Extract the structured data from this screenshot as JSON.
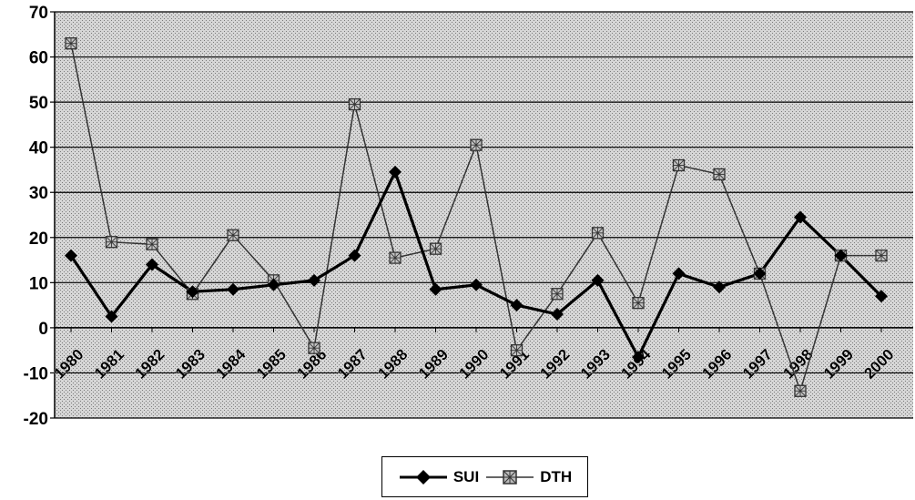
{
  "colors": {
    "SUI": "#000000",
    "DTH": "#333333",
    "plot_bg": "#cfcfcf",
    "grid": "#000000"
  },
  "chart_data": {
    "type": "line",
    "categories": [
      "1980",
      "1981",
      "1982",
      "1983",
      "1984",
      "1985",
      "1986",
      "1987",
      "1988",
      "1989",
      "1990",
      "1991",
      "1992",
      "1993",
      "1994",
      "1995",
      "1996",
      "1997",
      "1998",
      "1999",
      "2000"
    ],
    "series": [
      {
        "name": "SUI",
        "marker": "diamond-icon",
        "values": [
          16,
          2.5,
          14,
          8,
          8.5,
          9.5,
          10.5,
          16,
          34.5,
          8.5,
          9.5,
          5,
          3,
          10.5,
          -6.5,
          12,
          9,
          12,
          24.5,
          16,
          7
        ]
      },
      {
        "name": "DTH",
        "marker": "square-x-icon",
        "values": [
          63,
          19,
          18.5,
          7.5,
          20.5,
          10.5,
          -4.5,
          49.5,
          15.5,
          17.5,
          40.5,
          -5,
          7.5,
          21,
          5.5,
          36,
          34,
          12,
          -14,
          16,
          16
        ]
      }
    ],
    "ylim": [
      -20,
      70
    ],
    "yticks": [
      "-20",
      "-10",
      "0",
      "10",
      "20",
      "30",
      "40",
      "50",
      "60",
      "70"
    ],
    "grid": true,
    "legend": "bottom-center"
  }
}
